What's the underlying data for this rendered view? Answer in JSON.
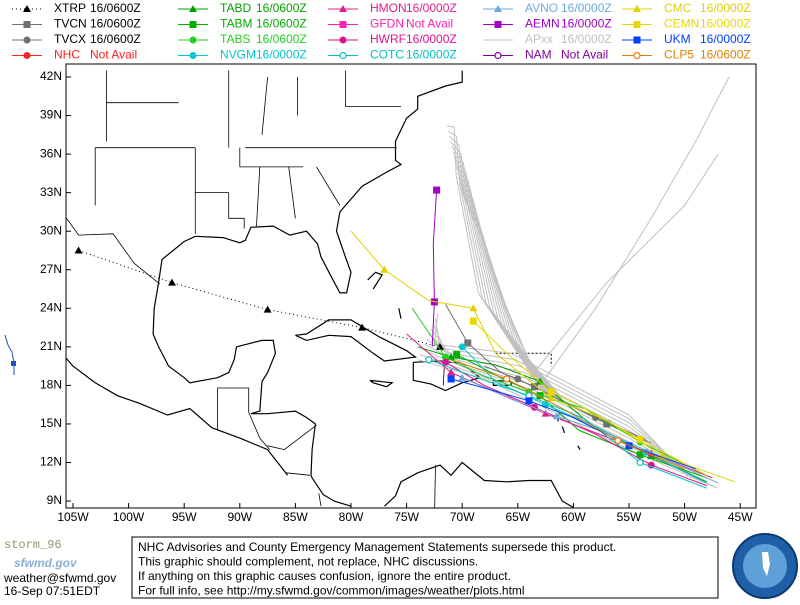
{
  "legend": [
    {
      "name": "XTRP",
      "time": "16/0600Z",
      "color": "#000000",
      "marker": "triangle",
      "dash": true
    },
    {
      "name": "TVCN",
      "time": "16/0600Z",
      "color": "#707070",
      "marker": "square"
    },
    {
      "name": "TVCX",
      "time": "16/0600Z",
      "color": "#707070",
      "marker": "circle"
    },
    {
      "name": "NHC",
      "time": "Not Avail",
      "color": "#ff2020",
      "marker": "circle"
    },
    {
      "name": "TABD",
      "time": "16/0600Z",
      "color": "#00a000",
      "marker": "triangle"
    },
    {
      "name": "TABM",
      "time": "16/0600Z",
      "color": "#00b000",
      "marker": "square"
    },
    {
      "name": "TABS",
      "time": "16/0600Z",
      "color": "#20d020",
      "marker": "circle"
    },
    {
      "name": "NVGM",
      "time": "16/0000Z",
      "color": "#00c8d0",
      "marker": "circle"
    },
    {
      "name": "HMON",
      "time": "16/0000Z",
      "color": "#e0208a",
      "marker": "triangle"
    },
    {
      "name": "GFDN",
      "time": "Not Avail",
      "color": "#ff20b0",
      "marker": "square"
    },
    {
      "name": "HWRF",
      "time": "16/0000Z",
      "color": "#e01090",
      "marker": "circle"
    },
    {
      "name": "COTC",
      "time": "16/0000Z",
      "color": "#00c0c0",
      "marker": "open-circle"
    },
    {
      "name": "AVNO",
      "time": "16/0000Z",
      "color": "#6fa8dc",
      "marker": "triangle"
    },
    {
      "name": "AEMN",
      "time": "16/0000Z",
      "color": "#a000c8",
      "marker": "square"
    },
    {
      "name": "APxx",
      "time": "16/0000Z",
      "color": "#c0c0c0",
      "marker": "none"
    },
    {
      "name": "NAM",
      "time": "Not Avail",
      "color": "#8000a0",
      "marker": "open-circle"
    },
    {
      "name": "CMC",
      "time": "16/0000Z",
      "color": "#e0d000",
      "marker": "triangle"
    },
    {
      "name": "CEMN",
      "time": "16/0000Z",
      "color": "#e8d800",
      "marker": "square"
    },
    {
      "name": "UKM",
      "time": "16/0000Z",
      "color": "#0040ff",
      "marker": "square"
    },
    {
      "name": "CLP5",
      "time": "16/0600Z",
      "color": "#e08000",
      "marker": "open-circle"
    }
  ],
  "lat_labels": [
    "42N",
    "39N",
    "36N",
    "33N",
    "30N",
    "27N",
    "24N",
    "21N",
    "18N",
    "15N",
    "12N",
    "9N"
  ],
  "lon_labels": [
    "105W",
    "100W",
    "95W",
    "90W",
    "85W",
    "80W",
    "75W",
    "70W",
    "65W",
    "60W",
    "55W",
    "50W",
    "45W"
  ],
  "footer": {
    "logo": "storm_96",
    "site": "sfwmd.gov",
    "email": "weather@sfwmd.gov",
    "timestamp": "16-Sep 07:51EDT",
    "notice": [
      "NHC Advisories and County Emergency Management Statements supersede this product.",
      "This graphic should complement, not replace, NHC discussions.",
      "If anything on this graphic causes confusion, ignore the entire product.",
      "For full info, see  http://my.sfwmd.gov/common/images/weather/plots.html"
    ]
  }
}
